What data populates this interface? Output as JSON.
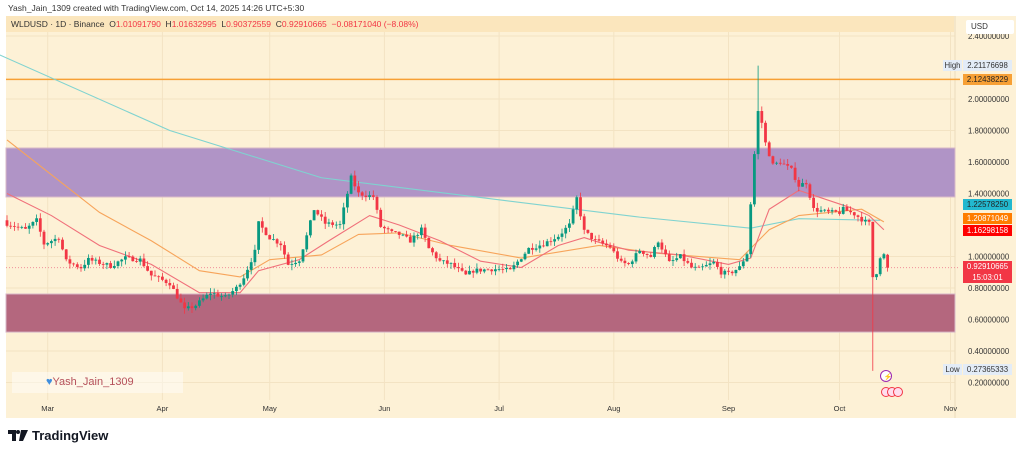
{
  "credit": "Yash_Jain_1309 created with TradingView.com, Oct 14, 2025 14:26 UTC+5:30",
  "legend": {
    "symbol": "WLDUSD · 1D · Binance",
    "open_label": "O",
    "open": "1.01091790",
    "high_label": "H",
    "high": "1.01632995",
    "low_label": "L",
    "low": "0.90372559",
    "close_label": "C",
    "close": "0.92910665",
    "change": "−0.08171040 (−8.08%)"
  },
  "currency": "USD",
  "badges": {
    "high_label": "High",
    "high_value": "2.21176698",
    "resistance_line": "2.12438229",
    "ma_cyan": "1.22578250",
    "ma_orange": "1.20871049",
    "ma_red": "1.16298158",
    "last_price": "0.92910665",
    "countdown": "15:03:01",
    "low_label": "Low",
    "low_value": "0.27365333"
  },
  "watermark": "Yash_Jain_1309",
  "brand": "TradingView",
  "colors": {
    "up": "#089981",
    "down": "#f23645",
    "bg": "#fdf1d6",
    "zone_upper": "#b094c6",
    "zone_lower": "#b4677e",
    "ma200": "#7fd3d0",
    "ma50": "#f7a45a",
    "ma20": "#f0707a",
    "level": "#f7a035"
  },
  "chart_data": {
    "type": "candlestick",
    "title": "WLDUSD · 1D · Binance",
    "x_tick_labels": [
      {
        "label": "Mar",
        "day": 11
      },
      {
        "label": "Apr",
        "day": 42
      },
      {
        "label": "May",
        "day": 71
      },
      {
        "label": "Jun",
        "day": 102
      },
      {
        "label": "Jul",
        "day": 133
      },
      {
        "label": "Aug",
        "day": 164
      },
      {
        "label": "Sep",
        "day": 195
      },
      {
        "label": "Oct",
        "day": 225
      },
      {
        "label": "Nov",
        "day": 255
      }
    ],
    "y_ticks": [
      2.4,
      2.0,
      1.8,
      1.6,
      1.4,
      1.0,
      0.8,
      0.6,
      0.4,
      0.2
    ],
    "ylim": [
      0.12,
      2.45
    ],
    "close_anchors": [
      [
        0,
        1.21
      ],
      [
        5,
        1.17
      ],
      [
        8,
        1.23
      ],
      [
        10,
        1.08
      ],
      [
        14,
        1.12
      ],
      [
        16,
        0.97
      ],
      [
        20,
        0.93
      ],
      [
        22,
        0.98
      ],
      [
        28,
        0.94
      ],
      [
        32,
        0.99
      ],
      [
        36,
        0.98
      ],
      [
        39,
        0.88
      ],
      [
        41,
        0.86
      ],
      [
        44,
        0.83
      ],
      [
        48,
        0.66
      ],
      [
        51,
        0.69
      ],
      [
        55,
        0.77
      ],
      [
        59,
        0.74
      ],
      [
        62,
        0.8
      ],
      [
        64,
        0.87
      ],
      [
        67,
        1.03
      ],
      [
        68,
        1.21
      ],
      [
        71,
        1.12
      ],
      [
        74,
        1.08
      ],
      [
        76,
        0.95
      ],
      [
        79,
        0.98
      ],
      [
        81,
        1.13
      ],
      [
        83,
        1.3
      ],
      [
        86,
        1.21
      ],
      [
        90,
        1.2
      ],
      [
        93,
        1.5
      ],
      [
        95,
        1.4
      ],
      [
        99,
        1.38
      ],
      [
        101,
        1.19
      ],
      [
        104,
        1.15
      ],
      [
        106,
        1.14
      ],
      [
        109,
        1.1
      ],
      [
        112,
        1.17
      ],
      [
        114,
        1.05
      ],
      [
        117,
        0.97
      ],
      [
        120,
        0.95
      ],
      [
        124,
        0.88
      ],
      [
        126,
        0.91
      ],
      [
        131,
        0.92
      ],
      [
        133,
        0.92
      ],
      [
        136,
        0.91
      ],
      [
        141,
        1.05
      ],
      [
        145,
        1.08
      ],
      [
        149,
        1.13
      ],
      [
        152,
        1.2
      ],
      [
        154,
        1.37
      ],
      [
        156,
        1.16
      ],
      [
        159,
        1.1
      ],
      [
        163,
        1.06
      ],
      [
        166,
        0.96
      ],
      [
        168,
        0.95
      ],
      [
        171,
        1.04
      ],
      [
        174,
        1.0
      ],
      [
        176,
        1.1
      ],
      [
        179,
        0.96
      ],
      [
        182,
        1.0
      ],
      [
        185,
        0.93
      ],
      [
        187,
        0.92
      ],
      [
        191,
        0.96
      ],
      [
        193,
        0.9
      ],
      [
        195,
        0.89
      ],
      [
        198,
        0.93
      ],
      [
        200,
        1.02
      ],
      [
        202,
        1.65
      ],
      [
        203,
        1.92
      ],
      [
        204,
        1.85
      ],
      [
        205,
        1.72
      ],
      [
        207,
        1.58
      ],
      [
        209,
        1.6
      ],
      [
        212,
        1.55
      ],
      [
        214,
        1.45
      ],
      [
        216,
        1.47
      ],
      [
        218,
        1.3
      ],
      [
        222,
        1.28
      ],
      [
        225,
        1.28
      ],
      [
        226,
        1.3
      ],
      [
        229,
        1.27
      ],
      [
        232,
        1.22
      ],
      [
        233,
        1.21
      ],
      [
        234,
        0.87
      ],
      [
        235,
        0.9
      ],
      [
        236,
        1.0
      ],
      [
        237,
        1.01
      ],
      [
        238,
        0.92910665
      ]
    ],
    "special_highs": [
      [
        203,
        2.21176698
      ]
    ],
    "special_lows": [
      [
        234,
        0.27365333
      ]
    ],
    "last_candle": {
      "open": 1.0109179,
      "high": 1.01632995,
      "low": 0.90372559,
      "close": 0.92910665
    },
    "ma_series": [
      {
        "name": "MA200",
        "color": "#7fd3d0",
        "points": [
          [
            -2,
            2.28
          ],
          [
            44,
            1.8
          ],
          [
            85,
            1.5
          ],
          [
            133,
            1.36
          ],
          [
            171,
            1.25
          ],
          [
            201,
            1.18
          ],
          [
            214,
            1.24
          ],
          [
            236,
            1.23
          ]
        ]
      },
      {
        "name": "MA50",
        "color": "#f7a45a",
        "points": [
          [
            0,
            1.74
          ],
          [
            25,
            1.28
          ],
          [
            39,
            1.1
          ],
          [
            52,
            0.91
          ],
          [
            63,
            0.87
          ],
          [
            71,
            0.98
          ],
          [
            85,
            1.01
          ],
          [
            95,
            1.14
          ],
          [
            106,
            1.15
          ],
          [
            120,
            1.07
          ],
          [
            139,
            0.99
          ],
          [
            160,
            1.07
          ],
          [
            176,
            1.02
          ],
          [
            198,
            0.98
          ],
          [
            206,
            1.17
          ],
          [
            214,
            1.26
          ],
          [
            231,
            1.3
          ],
          [
            237,
            1.22
          ]
        ]
      },
      {
        "name": "MA20",
        "color": "#f0707a",
        "points": [
          [
            0,
            1.4
          ],
          [
            12,
            1.26
          ],
          [
            25,
            1.07
          ],
          [
            39,
            0.95
          ],
          [
            52,
            0.77
          ],
          [
            63,
            0.77
          ],
          [
            68,
            0.91
          ],
          [
            79,
            0.98
          ],
          [
            87,
            1.1
          ],
          [
            98,
            1.26
          ],
          [
            106,
            1.2
          ],
          [
            117,
            1.1
          ],
          [
            128,
            0.97
          ],
          [
            139,
            0.93
          ],
          [
            149,
            1.07
          ],
          [
            156,
            1.12
          ],
          [
            160,
            1.09
          ],
          [
            168,
            1.04
          ],
          [
            182,
            1.01
          ],
          [
            195,
            0.95
          ],
          [
            201,
            0.99
          ],
          [
            206,
            1.3
          ],
          [
            214,
            1.42
          ],
          [
            228,
            1.31
          ],
          [
            233,
            1.26
          ],
          [
            237,
            1.17
          ]
        ]
      }
    ],
    "zones": [
      {
        "name": "supply",
        "from": 1.378,
        "to": 1.689
      },
      {
        "name": "demand",
        "from": 0.52,
        "to": 0.762
      }
    ],
    "levels": [
      {
        "name": "resistance",
        "price": 2.12438229
      }
    ],
    "last_price": 0.92910665
  }
}
